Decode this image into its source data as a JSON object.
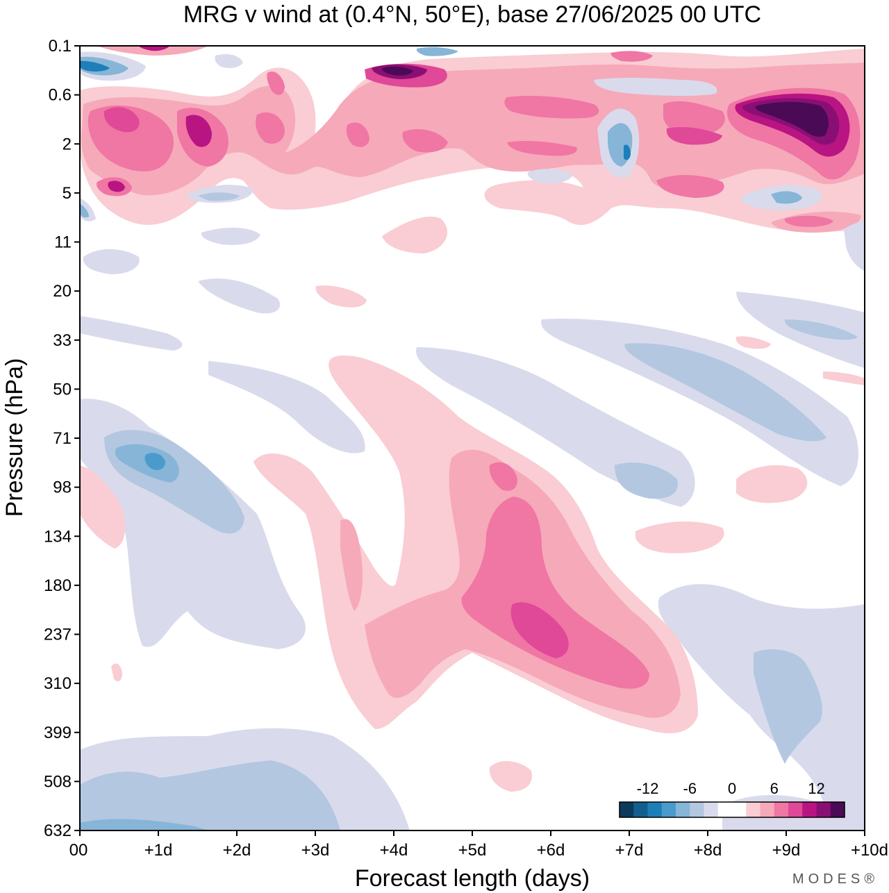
{
  "chart_data": {
    "type": "heatmap",
    "title": "MRG v wind at (0.4°N, 50°E),  base 27/06/2025  00 UTC",
    "xlabel": "Forecast length (days)",
    "ylabel": "Pressure (hPa)",
    "x_ticks": [
      "00",
      "+1d",
      "+2d",
      "+3d",
      "+4d",
      "+5d",
      "+6d",
      "+7d",
      "+8d",
      "+9d",
      "+10d"
    ],
    "y_ticks": [
      "0.1",
      "0.6",
      "2",
      "5",
      "11",
      "20",
      "33",
      "50",
      "71",
      "98",
      "134",
      "180",
      "237",
      "310",
      "399",
      "508",
      "632"
    ],
    "xlim": [
      0,
      10
    ],
    "y_scale": "log-pressure (inverted)",
    "colorbar": {
      "tick_labels": [
        "-12",
        "-6",
        "0",
        "6",
        "12"
      ],
      "tick_values": [
        -12,
        -6,
        0,
        6,
        12
      ],
      "levels": [
        -16,
        -14,
        -12,
        -10,
        -8,
        -6,
        -4,
        -2,
        0,
        2,
        4,
        6,
        8,
        10,
        12,
        14,
        16
      ],
      "colors": [
        "#0c3a5c",
        "#125f8e",
        "#1e7fb8",
        "#4a9bcc",
        "#86b5d8",
        "#b3c7e0",
        "#d9dbec",
        "#ffffff",
        "#ffffff",
        "#f9cdd3",
        "#f6a9b9",
        "#f076a4",
        "#e04898",
        "#b81482",
        "#8a0f74",
        "#4b0a56"
      ]
    },
    "features": [
      {
        "sign": "negative",
        "x": [
          0.4,
          2.1
        ],
        "p": [
          71,
          134
        ],
        "min": -12
      },
      {
        "sign": "negative",
        "x": [
          0.8,
          2.8
        ],
        "p": [
          134,
          310
        ],
        "min": -6
      },
      {
        "sign": "negative",
        "x": [
          0,
          3.8
        ],
        "p": [
          399,
          632
        ],
        "min": -8
      },
      {
        "sign": "negative",
        "x": [
          7.0,
          9.4
        ],
        "p": [
          33,
          80
        ],
        "min": -8
      },
      {
        "sign": "negative",
        "x": [
          8.6,
          9.6
        ],
        "p": [
          237,
          399
        ],
        "min": -8
      },
      {
        "sign": "positive",
        "x": [
          2.3,
          5.2
        ],
        "p": [
          40,
          180
        ],
        "min": 4
      },
      {
        "sign": "positive",
        "x": [
          4.3,
          7.3
        ],
        "p": [
          80,
          399
        ],
        "min": 10
      },
      {
        "sign": "positive",
        "x": [
          5.4,
          6.2
        ],
        "p": [
          200,
          280
        ],
        "min": 12
      },
      {
        "sign": "positive",
        "x": [
          0.2,
          2.2
        ],
        "p": [
          0.6,
          6
        ],
        "min": 14
      },
      {
        "sign": "positive",
        "x": [
          8.3,
          10
        ],
        "p": [
          0.5,
          4
        ],
        "min": 18
      },
      {
        "sign": "positive",
        "x": [
          3.5,
          4.5
        ],
        "p": [
          0.2,
          0.4
        ],
        "min": 16
      }
    ]
  },
  "brand": "MODES®"
}
